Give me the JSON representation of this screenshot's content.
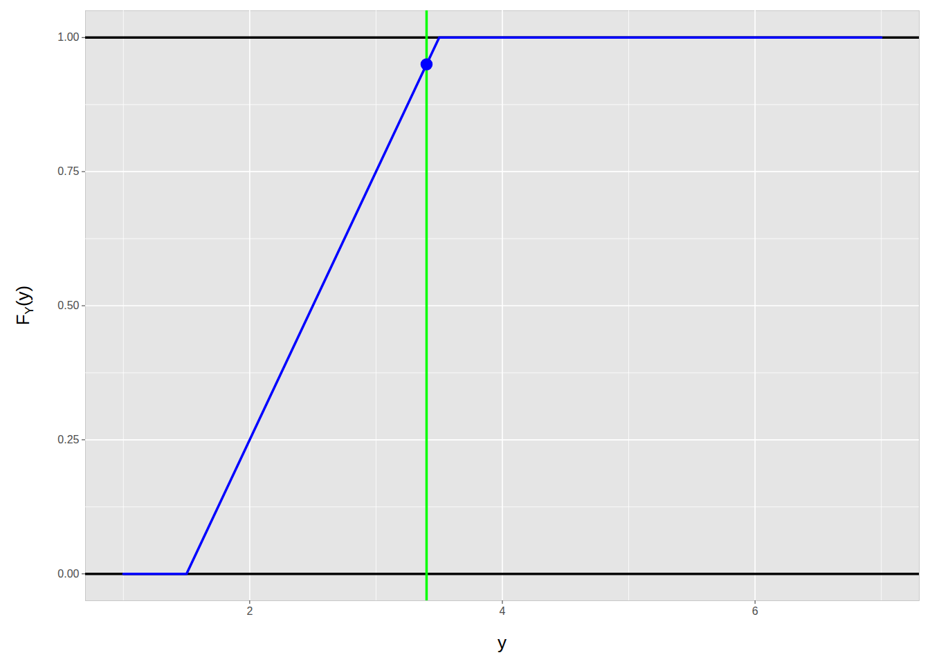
{
  "chart_data": {
    "type": "line",
    "x": [
      1,
      1.5,
      3.5,
      7
    ],
    "values": [
      0,
      0,
      1,
      1
    ],
    "color": "#0000ff",
    "xlabel": "y",
    "ylabel": {
      "base": "F",
      "sub": "Y",
      "rest": "(y)"
    },
    "xlim": [
      0.7,
      7.3
    ],
    "ylim": [
      -0.05,
      1.05
    ],
    "xticks": [
      2,
      4,
      6
    ],
    "yticks": [
      {
        "value": 0,
        "label": "0.00"
      },
      {
        "value": 0.25,
        "label": "0.25"
      },
      {
        "value": 0.5,
        "label": "0.50"
      },
      {
        "value": 0.75,
        "label": "0.75"
      },
      {
        "value": 1,
        "label": "1.00"
      }
    ],
    "grid": true,
    "hlines": [
      {
        "y": 0,
        "color": "#000000"
      },
      {
        "y": 1,
        "color": "#000000"
      }
    ],
    "vlines": [
      {
        "x": 3.4,
        "color": "#00ff00"
      }
    ],
    "points": [
      {
        "x": 3.4,
        "y": 0.95,
        "color": "#0000ff"
      }
    ]
  }
}
